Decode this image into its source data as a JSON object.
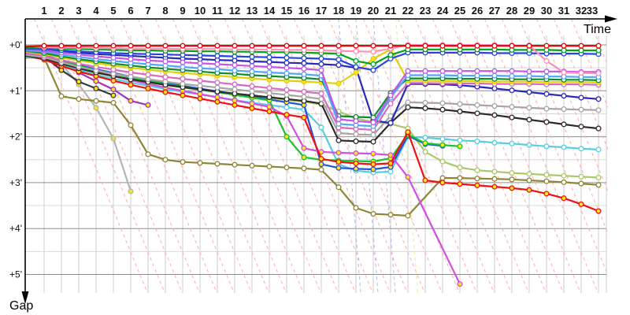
{
  "chart_data": {
    "type": "line",
    "title": "",
    "xlabel": "Time",
    "ylabel": "Gap",
    "x_unit": "lap",
    "y_unit": "minutes behind leader",
    "x_ticks": [
      1,
      2,
      3,
      4,
      5,
      6,
      7,
      8,
      9,
      10,
      11,
      12,
      13,
      14,
      15,
      16,
      17,
      18,
      19,
      20,
      21,
      22,
      23,
      24,
      25,
      26,
      27,
      28,
      29,
      30,
      31,
      32,
      33
    ],
    "y_tick_labels": [
      "+0'",
      "+1'",
      "+2'",
      "+3'",
      "+4'",
      "+5'"
    ],
    "ylim": [
      0,
      5.4
    ],
    "grid": true,
    "legend": "none",
    "axis_color": "#000000",
    "grid_major_color": "#8f8f8f",
    "grid_minor_color": "#d9d9d9",
    "grid_vertical_color": "#cccccc",
    "lap_line_color": "#ffb0b0",
    "marker_fill_colors": {
      "white": "#ffffff",
      "yellow": "#ffe321"
    },
    "special_dashed_lines": [
      {
        "lap": 18,
        "color": "#b9b9f2"
      },
      {
        "lap": 19,
        "color": "#b9b9f2"
      },
      {
        "lap": 20,
        "color": "#b9b9f2"
      },
      {
        "lap": 21.3,
        "color": "#ecec9a"
      }
    ],
    "series": [
      {
        "name": "gray-retired",
        "color": "#b5b5b5",
        "marker": "yellow",
        "start": 0.21,
        "gaps": [
          0.22,
          0.42,
          0.86,
          1.37,
          2.04,
          3.19,
          null,
          null,
          null,
          null,
          null,
          null,
          null,
          null,
          null,
          null,
          null,
          null,
          null,
          null,
          null,
          null,
          null,
          null,
          null,
          null,
          null,
          null,
          null,
          null,
          null,
          null,
          null
        ]
      },
      {
        "name": "black-retired",
        "color": "#383838",
        "marker": "yellow",
        "start": 0.2,
        "gaps": [
          0.25,
          0.55,
          0.8,
          0.95,
          1.1,
          null,
          null,
          null,
          null,
          null,
          null,
          null,
          null,
          null,
          null,
          null,
          null,
          null,
          null,
          null,
          null,
          null,
          null,
          null,
          null,
          null,
          null,
          null,
          null,
          null,
          null,
          null,
          null
        ]
      },
      {
        "name": "purple-retired",
        "color": "#a035b5",
        "marker": "yellow",
        "start": 0.11,
        "gaps": [
          0.15,
          0.4,
          0.6,
          0.79,
          0.97,
          1.22,
          1.31,
          null,
          null,
          null,
          null,
          null,
          null,
          null,
          null,
          null,
          null,
          null,
          null,
          null,
          null,
          null,
          null,
          null,
          null,
          null,
          null,
          null,
          null,
          null,
          null,
          null,
          null
        ]
      },
      {
        "name": "olive",
        "color": "#8d8735",
        "marker": "white",
        "start": 0.28,
        "gaps": [
          0.28,
          1.12,
          1.18,
          1.22,
          1.26,
          1.75,
          2.38,
          2.5,
          2.55,
          2.57,
          2.59,
          2.61,
          2.63,
          2.65,
          2.67,
          2.69,
          2.72,
          3.1,
          3.55,
          3.68,
          3.7,
          3.72,
          null,
          2.9,
          2.9,
          2.91,
          2.92,
          2.93,
          2.95,
          2.97,
          2.99,
          3.02,
          3.05
        ]
      },
      {
        "name": "yellow-green",
        "color": "#a9c86a",
        "marker": "white",
        "start": 0.27,
        "gaps": [
          0.3,
          0.42,
          0.52,
          0.61,
          0.69,
          0.76,
          0.82,
          0.88,
          0.93,
          0.98,
          1.03,
          1.08,
          1.12,
          1.16,
          1.2,
          1.24,
          1.3,
          1.45,
          1.6,
          1.68,
          1.72,
          1.82,
          2.33,
          2.54,
          2.67,
          2.73,
          2.76,
          2.79,
          2.81,
          2.83,
          2.85,
          2.87,
          2.89
        ]
      },
      {
        "name": "turquoise",
        "color": "#55cfe0",
        "marker": "white",
        "start": 0.25,
        "gaps": [
          0.31,
          0.44,
          0.55,
          0.65,
          0.74,
          0.82,
          0.89,
          0.96,
          1.02,
          1.08,
          1.14,
          1.2,
          1.26,
          1.31,
          1.36,
          1.41,
          1.8,
          2.6,
          2.74,
          2.78,
          2.76,
          2.0,
          2.02,
          2.05,
          2.08,
          2.1,
          2.13,
          2.15,
          2.18,
          2.21,
          2.23,
          2.26,
          2.28
        ]
      },
      {
        "name": "blue-retired",
        "color": "#2a52d8",
        "marker": "yellow",
        "start": 0.17,
        "gaps": [
          0.23,
          0.34,
          0.44,
          0.53,
          0.61,
          0.69,
          0.76,
          0.83,
          0.89,
          0.95,
          1.01,
          1.07,
          1.13,
          1.19,
          1.25,
          1.31,
          2.6,
          2.68,
          2.7,
          2.71,
          2.66,
          1.98,
          2.16,
          2.2,
          null,
          null,
          null,
          null,
          null,
          null,
          null,
          null,
          null
        ]
      },
      {
        "name": "green-retired",
        "color": "#18c32d",
        "marker": "yellow",
        "start": 0.18,
        "gaps": [
          0.25,
          0.36,
          0.46,
          0.55,
          0.63,
          0.71,
          0.78,
          0.85,
          0.91,
          0.97,
          1.03,
          1.09,
          1.15,
          1.21,
          2.0,
          2.45,
          2.5,
          2.52,
          2.53,
          2.54,
          2.47,
          1.95,
          2.14,
          2.18,
          2.21,
          null,
          null,
          null,
          null,
          null,
          null,
          null,
          null
        ]
      },
      {
        "name": "magenta-retired",
        "color": "#d24fe0",
        "marker": "yellow",
        "start": 0.19,
        "gaps": [
          0.26,
          0.38,
          0.49,
          0.59,
          0.68,
          0.77,
          0.85,
          0.93,
          1.0,
          1.07,
          1.14,
          1.21,
          1.28,
          1.35,
          1.55,
          2.25,
          2.33,
          2.35,
          2.36,
          2.37,
          2.4,
          2.88,
          null,
          null,
          5.21,
          null,
          null,
          null,
          null,
          null,
          null,
          null,
          null
        ]
      },
      {
        "name": "red-2",
        "color": "#ee1111",
        "marker": "yellow",
        "start": 0.23,
        "gaps": [
          0.32,
          0.46,
          0.58,
          0.68,
          0.78,
          0.87,
          0.95,
          1.03,
          1.1,
          1.17,
          1.24,
          1.31,
          1.38,
          1.45,
          1.52,
          1.58,
          2.48,
          2.55,
          2.58,
          2.6,
          2.58,
          1.9,
          2.95,
          3.0,
          3.03,
          3.06,
          3.09,
          3.12,
          3.16,
          3.24,
          3.34,
          3.47,
          3.62
        ]
      },
      {
        "name": "black",
        "color": "#2b2b2b",
        "marker": "white",
        "start": 0.24,
        "gaps": [
          0.29,
          0.41,
          0.51,
          0.6,
          0.68,
          0.75,
          0.81,
          0.87,
          0.92,
          0.97,
          1.02,
          1.06,
          1.1,
          1.14,
          1.18,
          1.22,
          1.28,
          2.08,
          2.1,
          2.11,
          1.7,
          1.36,
          1.38,
          1.41,
          1.45,
          1.49,
          1.53,
          1.58,
          1.63,
          1.68,
          1.73,
          1.78,
          1.82
        ]
      },
      {
        "name": "silver",
        "color": "#a6a6a6",
        "marker": "white",
        "start": 0.22,
        "gaps": [
          0.27,
          0.38,
          0.48,
          0.56,
          0.63,
          0.69,
          0.75,
          0.8,
          0.85,
          0.89,
          0.93,
          0.97,
          1.01,
          1.05,
          1.09,
          1.13,
          1.18,
          1.92,
          1.95,
          1.96,
          1.55,
          1.25,
          1.26,
          1.27,
          1.29,
          1.31,
          1.33,
          1.35,
          1.37,
          1.39,
          1.4,
          1.41,
          1.42
        ]
      },
      {
        "name": "navy",
        "color": "#2929b8",
        "marker": "white",
        "start": 0.09,
        "gaps": [
          0.1,
          0.14,
          0.17,
          0.2,
          0.22,
          0.24,
          0.26,
          0.28,
          0.3,
          0.31,
          0.33,
          0.34,
          0.36,
          0.37,
          0.39,
          0.4,
          0.42,
          0.44,
          0.5,
          1.65,
          1.7,
          0.85,
          0.85,
          0.86,
          0.88,
          0.91,
          0.95,
          0.99,
          1.03,
          1.07,
          1.11,
          1.15,
          1.18
        ]
      },
      {
        "name": "rose",
        "color": "#d66bc0",
        "marker": "white",
        "start": 0.16,
        "gaps": [
          0.24,
          0.33,
          0.41,
          0.48,
          0.54,
          0.6,
          0.65,
          0.7,
          0.74,
          0.78,
          0.82,
          0.86,
          0.9,
          0.94,
          0.98,
          1.02,
          1.06,
          1.8,
          1.83,
          1.85,
          1.28,
          0.83,
          0.83,
          0.84,
          0.84,
          0.84,
          0.85,
          0.85,
          0.85,
          0.86,
          0.86,
          0.86,
          0.87
        ]
      },
      {
        "name": "gold",
        "color": "#e3cf0e",
        "marker": "yellow",
        "start": 0.15,
        "gaps": [
          0.2,
          0.28,
          0.34,
          0.4,
          0.45,
          0.5,
          0.54,
          0.58,
          0.61,
          0.64,
          0.67,
          0.7,
          0.73,
          0.76,
          0.78,
          0.8,
          0.82,
          0.84,
          0.6,
          0.3,
          0.1,
          0.78,
          0.78,
          0.79,
          0.79,
          0.79,
          0.8,
          0.8,
          0.8,
          0.81,
          0.81,
          0.81,
          0.82
        ]
      },
      {
        "name": "dark-green",
        "color": "#0f8c2f",
        "marker": "white",
        "start": 0.13,
        "gaps": [
          0.18,
          0.25,
          0.31,
          0.36,
          0.41,
          0.45,
          0.49,
          0.52,
          0.55,
          0.58,
          0.61,
          0.63,
          0.66,
          0.68,
          0.7,
          0.72,
          0.75,
          1.55,
          1.57,
          1.58,
          1.05,
          0.73,
          0.73,
          0.73,
          0.74,
          0.74,
          0.74,
          0.75,
          0.75,
          0.75,
          0.76,
          0.76,
          0.77
        ]
      },
      {
        "name": "sky-blue",
        "color": "#4fa8f5",
        "marker": "white",
        "start": 0.12,
        "gaps": [
          0.15,
          0.21,
          0.26,
          0.31,
          0.35,
          0.39,
          0.42,
          0.45,
          0.48,
          0.51,
          0.53,
          0.56,
          0.58,
          0.6,
          0.62,
          0.64,
          0.67,
          1.72,
          1.75,
          1.77,
          1.15,
          0.66,
          0.66,
          0.66,
          0.67,
          0.67,
          0.67,
          0.68,
          0.68,
          0.69,
          0.69,
          0.7,
          0.7
        ]
      },
      {
        "name": "violet",
        "color": "#c156e8",
        "marker": "white",
        "start": 0.1,
        "gaps": [
          0.12,
          0.17,
          0.21,
          0.25,
          0.28,
          0.31,
          0.34,
          0.36,
          0.38,
          0.4,
          0.42,
          0.44,
          0.46,
          0.48,
          0.5,
          0.52,
          0.55,
          1.62,
          1.66,
          1.69,
          1.1,
          0.57,
          0.57,
          0.57,
          0.57,
          0.57,
          0.57,
          0.57,
          0.58,
          0.58,
          0.58,
          0.59,
          0.59
        ]
      },
      {
        "name": "blue",
        "color": "#2744e0",
        "marker": "white",
        "start": 0.08,
        "gaps": [
          0.09,
          0.12,
          0.14,
          0.16,
          0.18,
          0.19,
          0.2,
          0.21,
          0.22,
          0.23,
          0.24,
          0.25,
          0.26,
          0.27,
          0.28,
          0.29,
          0.3,
          0.32,
          0.48,
          0.55,
          0.3,
          0.17,
          0.17,
          0.17,
          0.17,
          0.17,
          0.18,
          0.18,
          0.18,
          0.19,
          0.19,
          0.19,
          0.2
        ]
      },
      {
        "name": "green",
        "color": "#00a31c",
        "marker": "white",
        "start": 0.06,
        "gaps": [
          0.06,
          0.08,
          0.09,
          0.1,
          0.11,
          0.12,
          0.12,
          0.13,
          0.13,
          0.14,
          0.14,
          0.15,
          0.15,
          0.16,
          0.16,
          0.17,
          0.18,
          0.19,
          0.35,
          0.42,
          0.22,
          0.1,
          0.1,
          0.1,
          0.1,
          0.1,
          0.1,
          0.11,
          0.11,
          0.11,
          0.12,
          0.12,
          0.12
        ]
      },
      {
        "name": "pink",
        "color": "#ff8fb8",
        "marker": "white",
        "start": 0.02,
        "gaps": [
          0.05,
          0.06,
          0.06,
          0.07,
          0.07,
          0.08,
          0.08,
          0.08,
          0.09,
          0.09,
          0.09,
          0.1,
          0.1,
          0.1,
          0.11,
          0.11,
          0.12,
          0.13,
          0.14,
          0.15,
          0.08,
          0.0,
          0.0,
          0.0,
          0.0,
          0.0,
          0.0,
          0.01,
          0.01,
          0.35,
          0.6,
          0.61,
          0.62
        ]
      },
      {
        "name": "leader-red",
        "color": "#e80000",
        "marker": "white",
        "start": 0.04,
        "gaps": [
          0.02,
          0.02,
          0.02,
          0.02,
          0.02,
          0.02,
          0.02,
          0.02,
          0.02,
          0.02,
          0.02,
          0.02,
          0.02,
          0.02,
          0.02,
          0.02,
          0.02,
          0.02,
          0.02,
          0.02,
          0.02,
          0.02,
          0.02,
          0.02,
          0.02,
          0.02,
          0.02,
          0.02,
          0.02,
          0.02,
          0.02,
          0.02,
          0.02
        ]
      }
    ]
  }
}
